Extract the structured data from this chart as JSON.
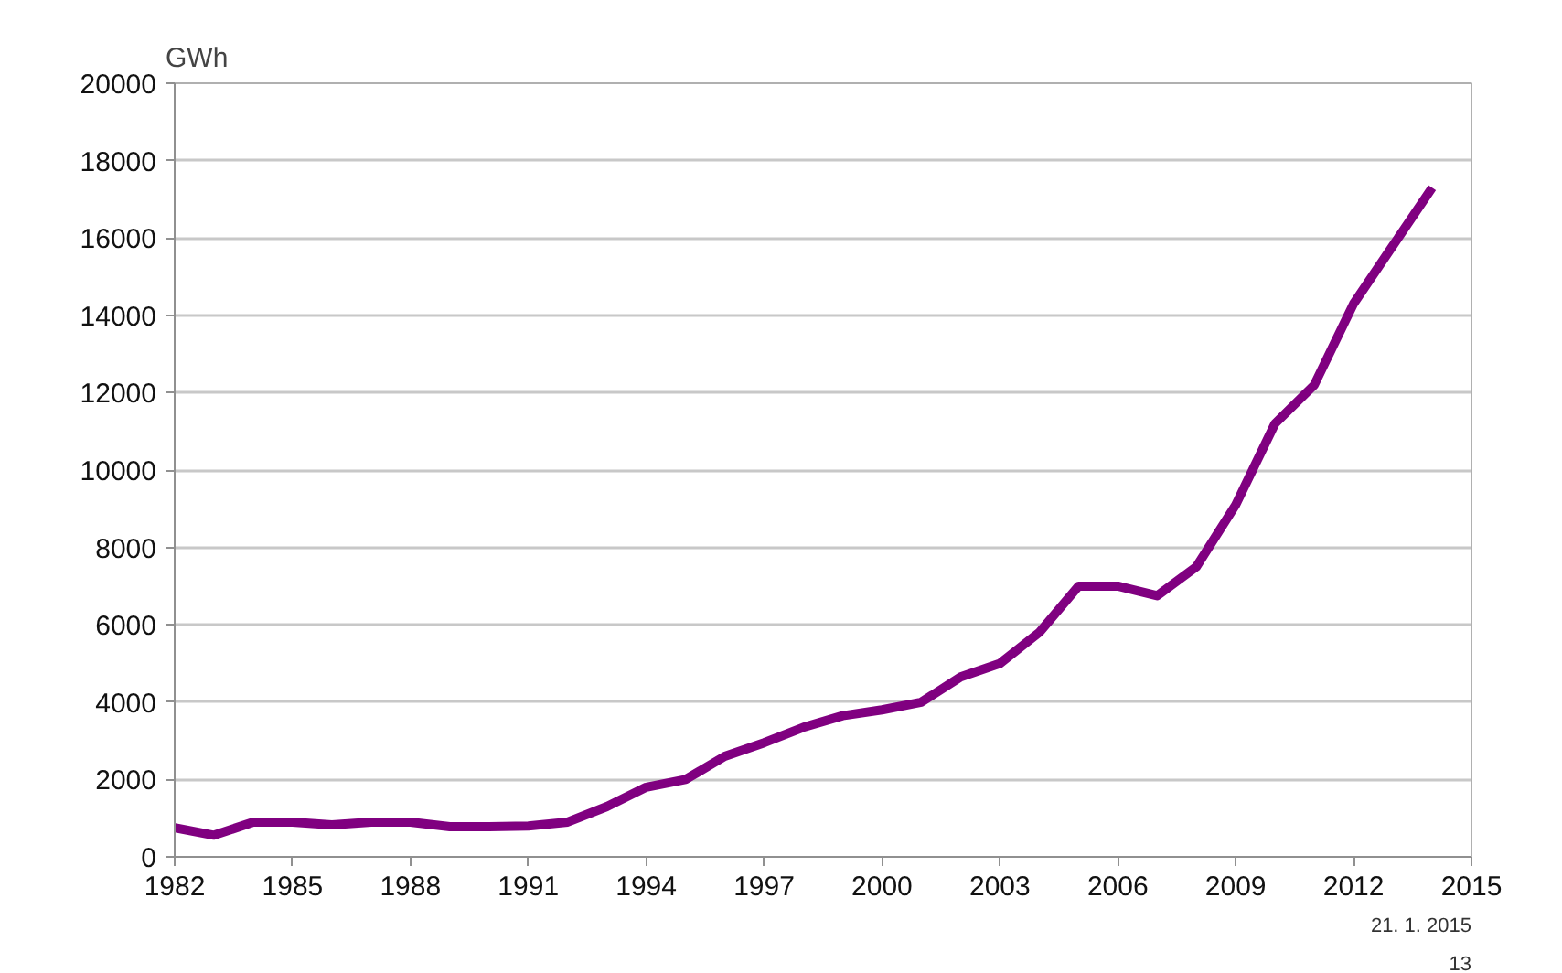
{
  "chart_data": {
    "type": "line",
    "ylabel": "GWh",
    "x": [
      1982,
      1983,
      1984,
      1985,
      1986,
      1987,
      1988,
      1989,
      1990,
      1991,
      1992,
      1993,
      1994,
      1995,
      1996,
      1997,
      1998,
      1999,
      2000,
      2001,
      2002,
      2003,
      2004,
      2005,
      2006,
      2007,
      2008,
      2009,
      2010,
      2011,
      2012,
      2013,
      2014
    ],
    "series": [
      {
        "color": "#800080",
        "values": [
          750,
          560,
          900,
          900,
          830,
          900,
          900,
          780,
          780,
          800,
          900,
          1300,
          1800,
          2000,
          2600,
          2950,
          3350,
          3650,
          3800,
          4000,
          4650,
          5000,
          5800,
          7000,
          7000,
          6750,
          7500,
          9100,
          11200,
          12200,
          14300,
          15800,
          17300
        ]
      }
    ],
    "xlim": [
      1982,
      2015
    ],
    "xticks": [
      1982,
      1985,
      1988,
      1991,
      1994,
      1997,
      2000,
      2003,
      2006,
      2009,
      2012,
      2015
    ],
    "ylim": [
      0,
      20000
    ],
    "yticks": [
      0,
      2000,
      4000,
      6000,
      8000,
      10000,
      12000,
      14000,
      16000,
      18000,
      20000
    ],
    "grid": "y",
    "marker": "none",
    "line_style": "solid",
    "annotations": [
      "21. 1. 2015",
      "13"
    ]
  }
}
